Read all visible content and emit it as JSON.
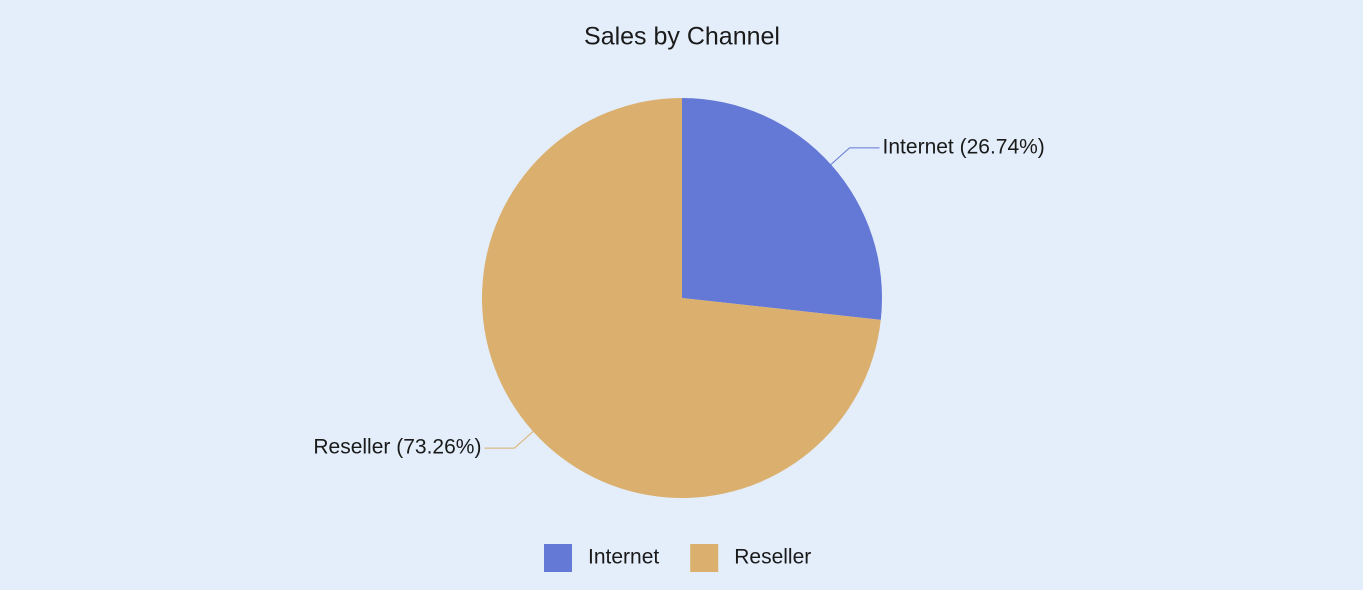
{
  "chart_data": {
    "type": "pie",
    "title": "Sales by Channel",
    "categories": [
      "Internet",
      "Reseller"
    ],
    "values": [
      26.74,
      73.26
    ],
    "value_labels": [
      "Internet (26.74%)",
      "Reseller (73.26%)"
    ],
    "colors": [
      "#6478d6",
      "#dbaf6e"
    ],
    "legend": "bottom"
  }
}
